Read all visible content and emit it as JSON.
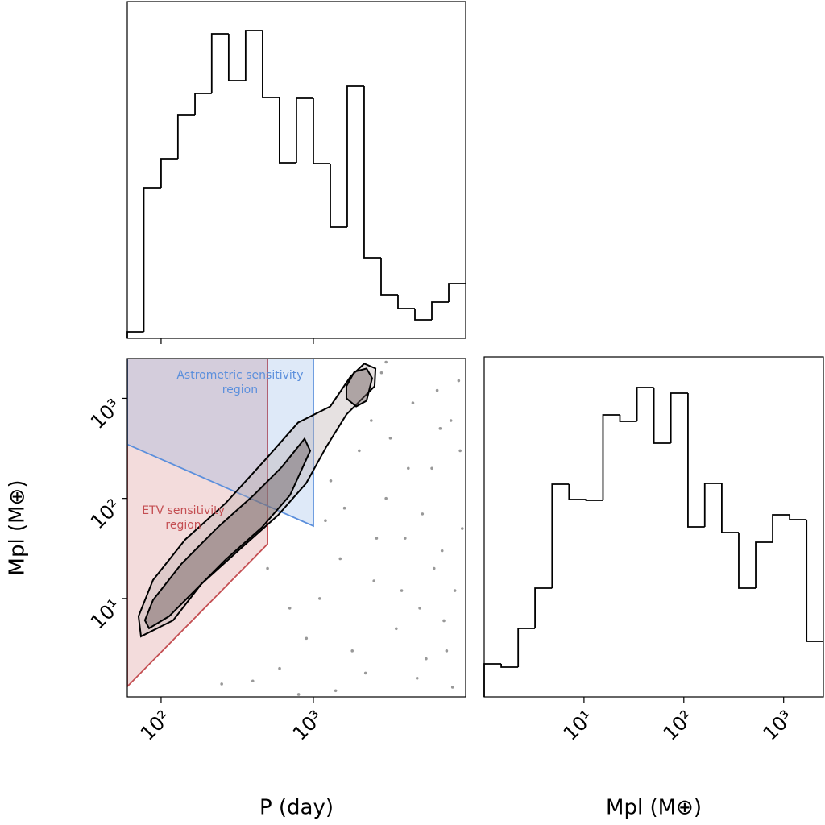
{
  "chart_data": [
    {
      "type": "histogram",
      "bins": [
        60,
        77,
        100,
        129,
        167,
        215,
        278,
        359,
        464,
        599,
        774,
        1000,
        1292,
        1668,
        2154,
        2783,
        3594,
        4642,
        5995,
        7743,
        10000
      ],
      "values": [
        8,
        187,
        223,
        277,
        304,
        378,
        320,
        382,
        299,
        218,
        298,
        217,
        138,
        313,
        100,
        54,
        37,
        23,
        45,
        68
      ],
      "color": "#000000",
      "xlim": [
        60,
        10000
      ],
      "xlog": true,
      "ylim": [
        0,
        418
      ],
      "xticks": [
        100,
        1000
      ]
    },
    {
      "type": "scatter",
      "xlim": [
        60,
        10000
      ],
      "ylim": [
        1.04,
        2500
      ],
      "xlog": true,
      "ylog": true,
      "xticks": [
        {
          "value": 100,
          "label": "10²"
        },
        {
          "value": 1000,
          "label": "10³"
        }
      ],
      "yticks": [
        {
          "value": 10,
          "label": "10¹"
        },
        {
          "value": 100,
          "label": "10²"
        },
        {
          "value": 1000,
          "label": "10³"
        }
      ],
      "x_label": "P (day)",
      "y_label": "Mpl (M⊕)",
      "regions": [
        {
          "lines": [
            "ETV sensitivity",
            "region"
          ],
          "color": "#c44e52",
          "x": [
            60,
            500,
            500,
            60
          ],
          "y": [
            2500,
            2500,
            35,
            1.32
          ],
          "label_at": [
            140,
            75
          ]
        },
        {
          "lines": [
            "Astrometric sensitivity",
            "region"
          ],
          "color": "#5b8fdc",
          "x": [
            60,
            1000,
            1000,
            60
          ],
          "y": [
            2500,
            2500,
            53,
            347
          ],
          "label_at": [
            330,
            1700
          ]
        }
      ],
      "contours": [
        {
          "x": [
            73.8,
            120,
            184,
            338,
            585,
            897,
            1216,
            1648,
            2523,
            2558,
            2158,
            1754,
            1291,
            794,
            488,
            265,
            144,
            88.5,
            71.1
          ],
          "y": [
            4.18,
            6.05,
            14.0,
            32.2,
            67.8,
            142,
            328,
            690,
            1321,
            1988,
            2222,
            1651,
            830,
            573,
            248,
            89.5,
            38.8,
            15.3,
            6.65
          ]
        },
        {
          "x": [
            83.4,
            113,
            163,
            265,
            459,
            703,
            953,
            875,
            622,
            406,
            235,
            136,
            88.5,
            78.3
          ],
          "y": [
            5.04,
            6.65,
            11.6,
            24.4,
            51.3,
            108,
            299,
            395,
            207,
            108,
            51.3,
            22.2,
            9.64,
            6.05
          ]
        },
        {
          "x": [
            1648,
            1862,
            2234,
            2432,
            2234,
            1910,
            1648
          ],
          "y": [
            1321,
            1845,
            1988,
            1592,
            946,
            830,
            1000
          ]
        }
      ],
      "x": [
        1200,
        1500,
        2000,
        3000,
        2500,
        4000,
        5000,
        6000,
        7000,
        8000,
        9000,
        3500,
        1800,
        900,
        600,
        400,
        2200,
        5500,
        7500,
        8500,
        9500,
        4500,
        3200,
        2800,
        6500,
        1100,
        700,
        500,
        1300,
        1600,
        2600,
        3800,
        4200,
        5200,
        6200,
        7200,
        8200,
        9200,
        2400,
        3000,
        1400,
        250,
        800,
        4800,
        6800
      ],
      "y": [
        60,
        25,
        300,
        100,
        15,
        40,
        8,
        200,
        30,
        600,
        1500,
        5,
        3,
        4,
        2,
        1.5,
        1.8,
        2.5,
        3,
        12,
        50,
        900,
        400,
        1800,
        1200,
        10,
        8,
        20,
        150,
        80,
        40,
        12,
        200,
        70,
        20,
        6,
        1.3,
        300,
        600,
        2300,
        1.2,
        1.4,
        1.1,
        1.6,
        500
      ],
      "color": "#000000"
    },
    {
      "type": "histogram",
      "bins": [
        1,
        1.48,
        2.19,
        3.23,
        4.79,
        7.08,
        10.5,
        15.5,
        22.9,
        33.9,
        50.1,
        74.1,
        110,
        162,
        240,
        355,
        525,
        776,
        1148,
        1698,
        2500
      ],
      "values": [
        41,
        37,
        85,
        135,
        264,
        245,
        244,
        350,
        342,
        384,
        315,
        377,
        211,
        265,
        204,
        135,
        192,
        226,
        220,
        69
      ],
      "color": "#000000",
      "xlim": [
        1,
        2500
      ],
      "xlog": true,
      "ylim": [
        0,
        422
      ],
      "xticks": [
        {
          "value": 10,
          "label": "10¹"
        },
        {
          "value": 100,
          "label": "10²"
        },
        {
          "value": 1000,
          "label": "10³"
        }
      ],
      "x_label": "Mpl (M⊕)"
    }
  ]
}
